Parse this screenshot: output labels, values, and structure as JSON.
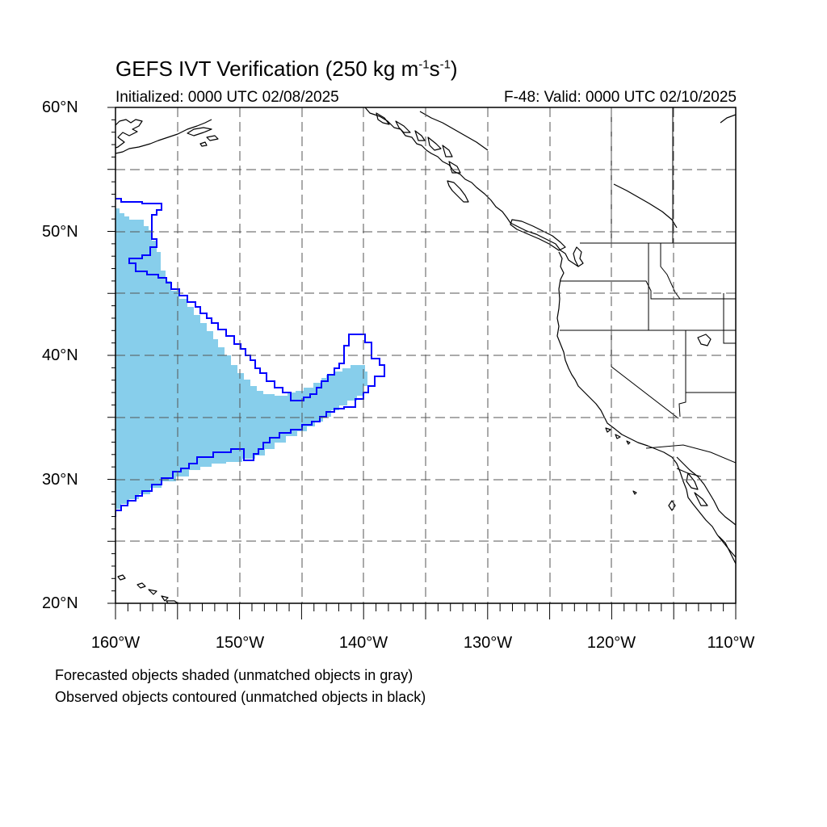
{
  "title": {
    "main": "GEFS IVT Verification (250 kg m",
    "exp1": "-1",
    "mid": "s",
    "exp2": "-1",
    "close": ")"
  },
  "init_text": "Initialized: 0000 UTC 02/08/2025",
  "valid_text": "F-48: Valid: 0000 UTC 02/10/2025",
  "map": {
    "lon_range": [
      -160,
      -110
    ],
    "lat_range": [
      20,
      60
    ],
    "grid_lons": [
      -155,
      -150,
      -145,
      -140,
      -135,
      -130,
      -125,
      -120,
      -115
    ],
    "grid_lats": [
      25,
      30,
      35,
      40,
      45,
      50,
      55
    ],
    "grid_style": "dashed",
    "lat_labels": [
      "60°N",
      "50°N",
      "40°N",
      "30°N",
      "20°N"
    ],
    "lon_labels": [
      "160°W",
      "150°W",
      "140°W",
      "130°W",
      "120°W",
      "110°W"
    ],
    "forecast_fill_color": "#87ceeb",
    "observed_contour_color": "#0000ff",
    "coastline_color": "#000000"
  },
  "legend": {
    "forecast_note": "Forecasted objects shaded (unmatched objects in gray)",
    "observed_note": "Observed objects contoured (unmatched objects in black)"
  }
}
